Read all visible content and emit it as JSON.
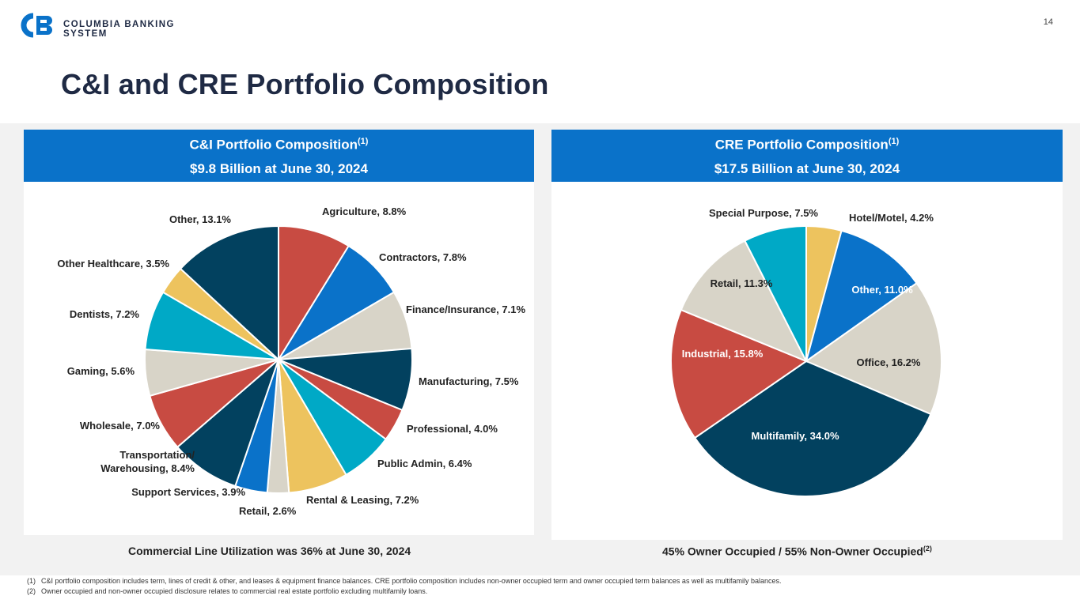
{
  "brand": {
    "name": "COLUMBIA BANKING SYSTEM",
    "color": "#0a72c9"
  },
  "page_number": "14",
  "title": "C&I and CRE Portfolio Composition",
  "ci_panel": {
    "heading": "C&I Portfolio Composition",
    "heading_note": "(1)",
    "subheading": "$9.8 Billion at June 30, 2024",
    "caption": "Commercial Line Utilization was 36% at June 30, 2024"
  },
  "cre_panel": {
    "heading": "CRE Portfolio Composition",
    "heading_note": "(1)",
    "subheading": "$17.5 Billion at June 30, 2024",
    "caption": "45% Owner Occupied / 55% Non-Owner Occupied",
    "caption_note": "(2)"
  },
  "footnotes": [
    {
      "mark": "(1)",
      "text": "C&I portfolio composition includes term, lines of credit & other, and leases & equipment finance balances. CRE portfolio composition includes non-owner occupied term and owner occupied term balances as well as multifamily balances."
    },
    {
      "mark": "(2)",
      "text": "Owner occupied and non-owner occupied disclosure relates to commercial real estate portfolio excluding multifamily loans."
    }
  ],
  "chart_data": [
    {
      "type": "pie",
      "slices": [
        {
          "label": "Agriculture, 8.8%",
          "value": 8.8,
          "color": "#c84b42"
        },
        {
          "label": "Contractors, 7.8%",
          "value": 7.8,
          "color": "#0a72c9"
        },
        {
          "label": "Finance/Insurance, 7.1%",
          "value": 7.1,
          "color": "#d8d4c8"
        },
        {
          "label": "Manufacturing, 7.5%",
          "value": 7.5,
          "color": "#02415f"
        },
        {
          "label": "Professional, 4.0%",
          "value": 4.0,
          "color": "#c84b42"
        },
        {
          "label": "Public Admin, 6.4%",
          "value": 6.4,
          "color": "#00a9c6"
        },
        {
          "label": "Rental & Leasing, 7.2%",
          "value": 7.2,
          "color": "#edc35e"
        },
        {
          "label": "Retail, 2.6%",
          "value": 2.6,
          "color": "#d8d4c8"
        },
        {
          "label": "Support Services, 3.9%",
          "value": 3.9,
          "color": "#0a72c9"
        },
        {
          "label": [
            "Transportation/",
            "Warehousing, 8.4%"
          ],
          "value": 8.4,
          "color": "#02415f"
        },
        {
          "label": "Wholesale, 7.0%",
          "value": 7.0,
          "color": "#c84b42"
        },
        {
          "label": "Gaming, 5.6%",
          "value": 5.6,
          "color": "#d8d4c8"
        },
        {
          "label": "Dentists, 7.2%",
          "value": 7.2,
          "color": "#00a9c6"
        },
        {
          "label": "Other Healthcare, 3.5%",
          "value": 3.5,
          "color": "#edc35e"
        },
        {
          "label": "Other, 13.1%",
          "value": 13.1,
          "color": "#02415f"
        }
      ]
    },
    {
      "type": "pie",
      "slices": [
        {
          "label": "Hotel/Motel, 4.2%",
          "value": 4.2,
          "color": "#edc35e"
        },
        {
          "label": "Other, 11.0%",
          "value": 11.0,
          "color": "#0a72c9"
        },
        {
          "label": "Office, 16.2%",
          "value": 16.2,
          "color": "#d8d4c8"
        },
        {
          "label": "Multifamily, 34.0%",
          "value": 34.0,
          "color": "#02415f"
        },
        {
          "label": "Industrial, 15.8%",
          "value": 15.8,
          "color": "#c84b42"
        },
        {
          "label": "Retail, 11.3%",
          "value": 11.3,
          "color": "#d8d4c8"
        },
        {
          "label": "Special Purpose, 7.5%",
          "value": 7.5,
          "color": "#00a9c6"
        }
      ]
    }
  ]
}
